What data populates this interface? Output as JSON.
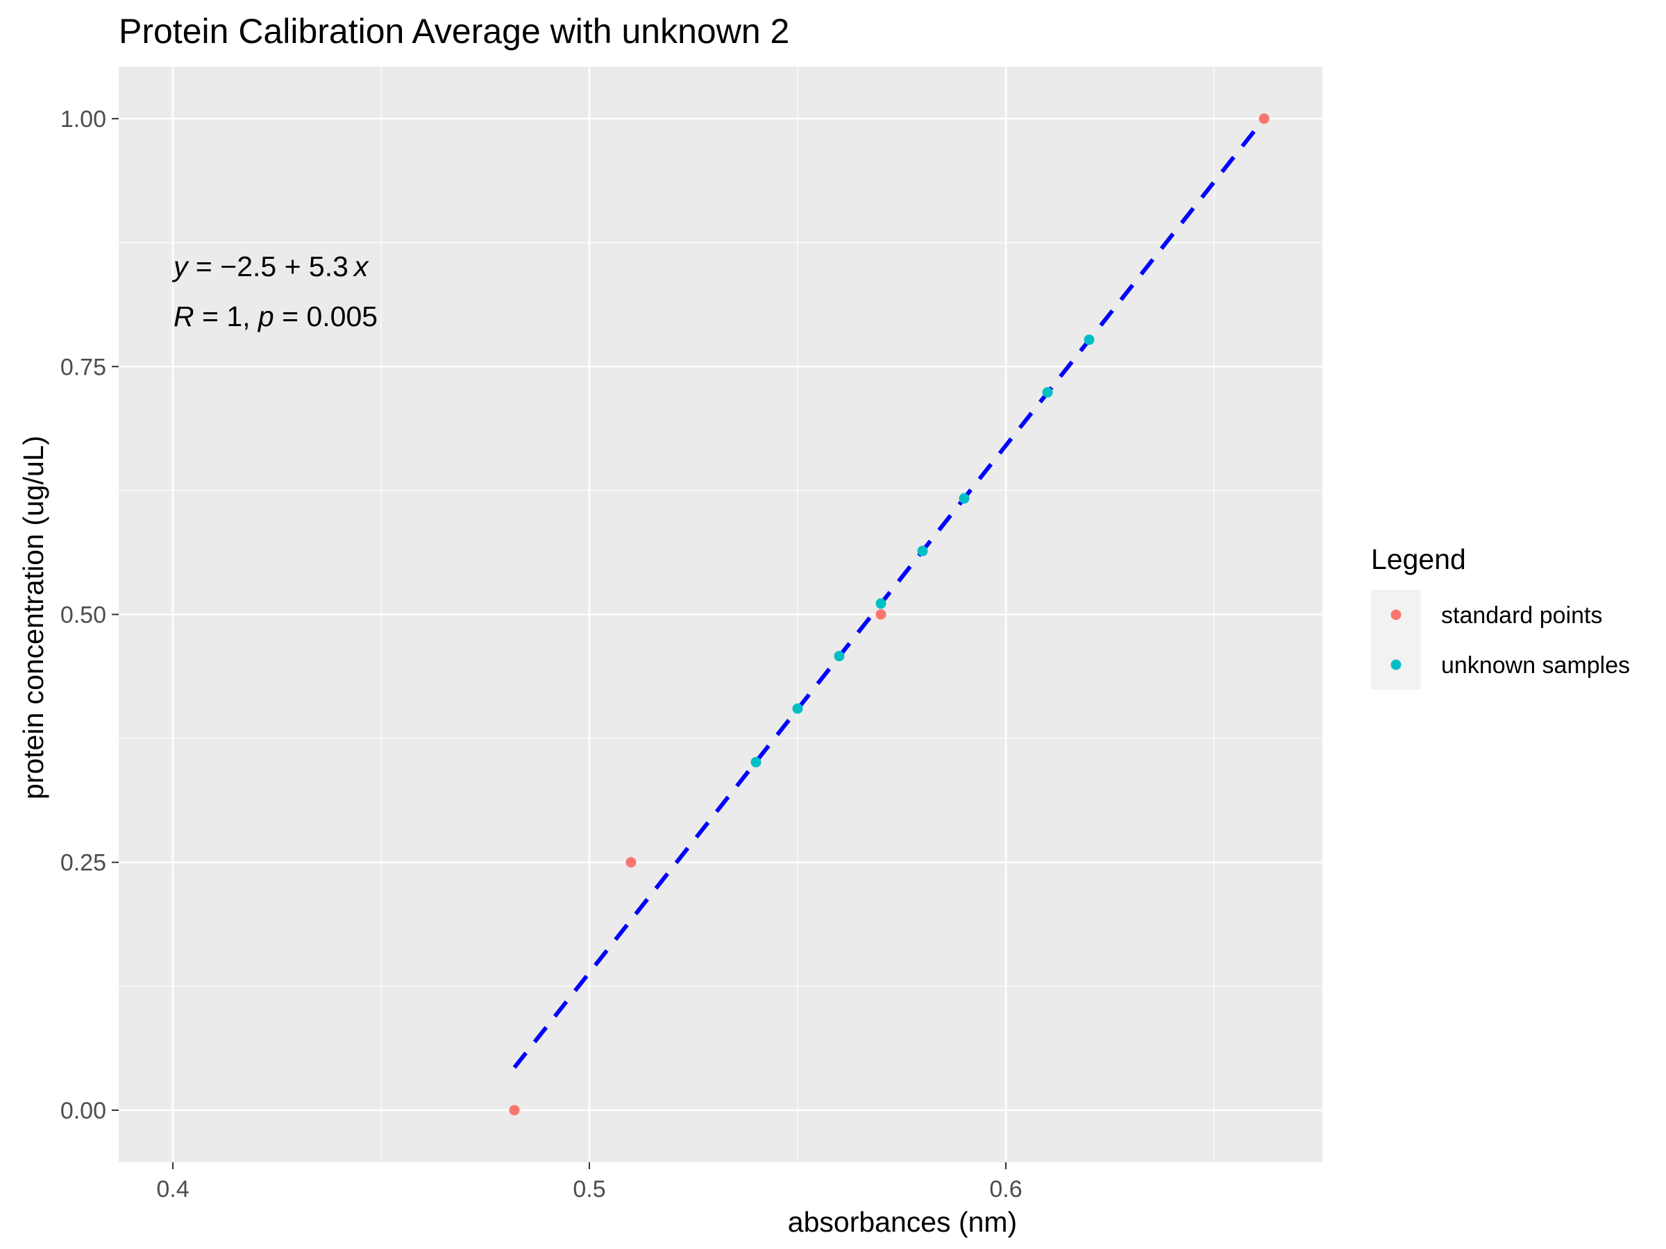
{
  "chart_data": {
    "type": "scatter",
    "title": "Protein Calibration Average with unknown 2",
    "xlabel": "absorbances (nm)",
    "ylabel": "protein concentration (ug/uL)",
    "xlim": [
      0.387,
      0.676
    ],
    "ylim": [
      -0.0525,
      1.0525
    ],
    "x_ticks": [
      0.4,
      0.5,
      0.6
    ],
    "x_tick_labels": [
      "0.4",
      "0.5",
      "0.6"
    ],
    "y_ticks": [
      0.0,
      0.25,
      0.5,
      0.75,
      1.0
    ],
    "y_tick_labels": [
      "0.00",
      "0.25",
      "0.50",
      "0.75",
      "1.00"
    ],
    "grid": true,
    "legend": {
      "title": "Legend",
      "position": "right"
    },
    "series": [
      {
        "name": "standard points",
        "color": "#F8766D",
        "points": [
          {
            "x": 0.482,
            "y": 0.0
          },
          {
            "x": 0.51,
            "y": 0.25
          },
          {
            "x": 0.57,
            "y": 0.5
          },
          {
            "x": 0.662,
            "y": 1.0
          }
        ]
      },
      {
        "name": "unknown samples",
        "color": "#00BFC4",
        "points": [
          {
            "x": 0.54,
            "y": 0.351
          },
          {
            "x": 0.55,
            "y": 0.405
          },
          {
            "x": 0.56,
            "y": 0.458
          },
          {
            "x": 0.57,
            "y": 0.511
          },
          {
            "x": 0.58,
            "y": 0.564
          },
          {
            "x": 0.59,
            "y": 0.617
          },
          {
            "x": 0.61,
            "y": 0.724
          },
          {
            "x": 0.62,
            "y": 0.777
          }
        ]
      }
    ],
    "fit_line": {
      "color": "#0000FF",
      "style": "dashed",
      "x_range": [
        0.482,
        0.662
      ],
      "y_range": [
        0.043,
        1.0
      ]
    },
    "annotations": {
      "equation": {
        "y": "y",
        "eq": " = ",
        "minus": "−",
        "intercept": "2.5",
        "plus": " + ",
        "slope": "5.3",
        "x": "x"
      },
      "stats": {
        "r": "R",
        "r_value": " = 1, ",
        "p": "p",
        "p_value": " = 0.005"
      }
    }
  }
}
